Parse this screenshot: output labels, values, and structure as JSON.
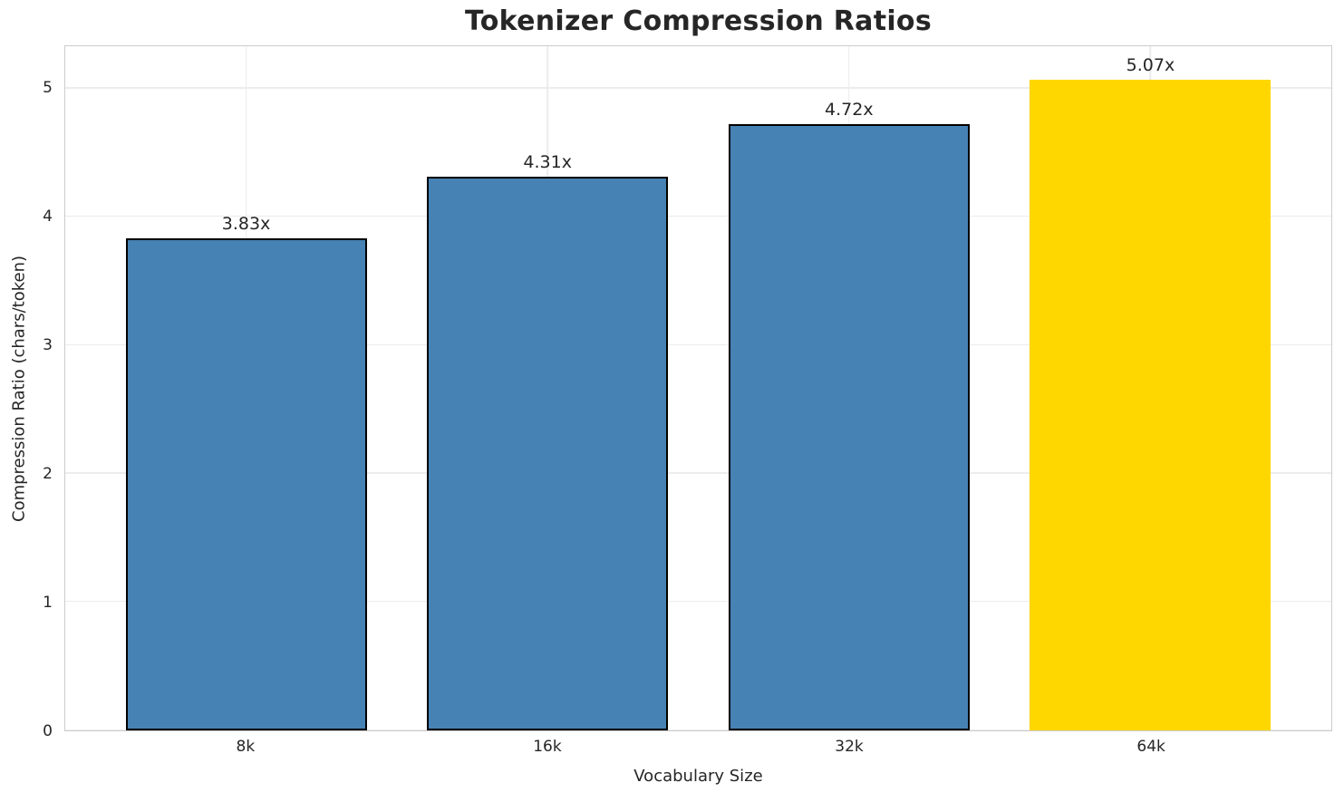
{
  "chart_data": {
    "type": "bar",
    "title": "Tokenizer Compression Ratios",
    "xlabel": "Vocabulary Size",
    "ylabel": "Compression Ratio (chars/token)",
    "categories": [
      "8k",
      "16k",
      "32k",
      "64k"
    ],
    "values": [
      3.83,
      4.31,
      4.72,
      5.07
    ],
    "bar_labels": [
      "3.83x",
      "4.31x",
      "4.72x",
      "5.07x"
    ],
    "yticks": [
      0,
      1,
      2,
      3,
      4,
      5
    ],
    "ylim": [
      0,
      5.33
    ],
    "grid": "both",
    "legend": "none",
    "colors": {
      "bar_default": "#4682B4",
      "bar_highlight": "#FFD700",
      "bar_edge": "#000000",
      "grid": "#ececec",
      "spine": "#cccccc",
      "text": "#262626",
      "background": "#ffffff"
    },
    "bars": [
      {
        "category": "8k",
        "value": 3.83,
        "label": "3.83x",
        "color": "#4682B4",
        "edge": "#000000"
      },
      {
        "category": "16k",
        "value": 4.31,
        "label": "4.31x",
        "color": "#4682B4",
        "edge": "#000000"
      },
      {
        "category": "32k",
        "value": 4.72,
        "label": "4.72x",
        "color": "#4682B4",
        "edge": "#000000"
      },
      {
        "category": "64k",
        "value": 5.07,
        "label": "5.07x",
        "color": "#FFD700",
        "edge": "none"
      }
    ]
  }
}
